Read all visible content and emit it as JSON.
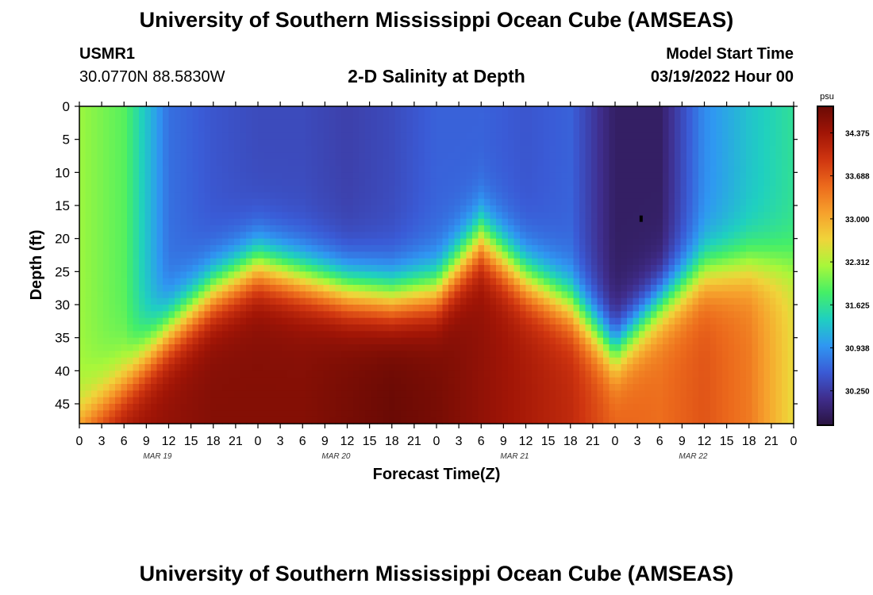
{
  "header": {
    "title": "University of Southern Mississippi Ocean Cube (AMSEAS)",
    "station": "USMR1",
    "coordinates": "30.0770N  88.5830W",
    "subtitle": "2-D Salinity at Depth",
    "model_start_label": "Model Start Time",
    "model_start_value": "03/19/2022 Hour 00"
  },
  "footer": {
    "title": "University of Southern Mississippi Ocean Cube (AMSEAS)"
  },
  "chart_data": {
    "type": "heatmap",
    "title": "2-D Salinity at Depth",
    "xlabel": "Forecast Time(Z)",
    "ylabel": "Depth (ft)",
    "x_range_hours": [
      0,
      96
    ],
    "ylim": [
      0,
      48
    ],
    "x_tick_labels": [
      "0",
      "3",
      "6",
      "9",
      "12",
      "15",
      "18",
      "21",
      "0",
      "3",
      "6",
      "9",
      "12",
      "15",
      "18",
      "21",
      "0",
      "3",
      "6",
      "9",
      "12",
      "15",
      "18",
      "21",
      "0",
      "3",
      "6",
      "9",
      "12",
      "15",
      "18",
      "21",
      "0"
    ],
    "y_ticks": [
      0,
      5,
      10,
      15,
      20,
      25,
      30,
      35,
      40,
      45
    ],
    "date_labels": [
      {
        "label": "MAR 19",
        "hour": 10.5
      },
      {
        "label": "MAR 20",
        "hour": 34.5
      },
      {
        "label": "MAR 21",
        "hour": 58.5
      },
      {
        "label": "MAR 22",
        "hour": 82.5
      }
    ],
    "colorbar": {
      "unit": "psu",
      "min": 29.7,
      "max": 34.8,
      "tick_labels": [
        "34.375",
        "33.688",
        "33.000",
        "32.312",
        "31.625",
        "30.938",
        "30.250"
      ],
      "colors": [
        "#2a1340",
        "#3f2d8c",
        "#3a5bd6",
        "#2f97f2",
        "#1fd0c0",
        "#45ef66",
        "#a8f73a",
        "#f0d43a",
        "#f6a02c",
        "#ec6a1c",
        "#cf3510",
        "#a11506",
        "#6a0a05"
      ]
    },
    "series": [
      {
        "name": "surface_0_25ft_psu",
        "hours": [
          0,
          6,
          12,
          18,
          24,
          30,
          36,
          42,
          48,
          54,
          60,
          66,
          72,
          78,
          84,
          90,
          96
        ],
        "values": [
          32.2,
          31.9,
          30.7,
          30.5,
          30.4,
          30.4,
          30.3,
          30.4,
          30.6,
          30.6,
          30.5,
          30.6,
          29.9,
          29.9,
          30.9,
          31.3,
          31.6
        ]
      },
      {
        "name": "halocline_depth_ft",
        "hours": [
          0,
          6,
          12,
          18,
          24,
          30,
          36,
          42,
          48,
          54,
          60,
          66,
          72,
          78,
          84,
          90,
          96
        ],
        "values": [
          48,
          42,
          34,
          28,
          24,
          26,
          28,
          29,
          28,
          20,
          26,
          30,
          37,
          30,
          25,
          24,
          24
        ]
      },
      {
        "name": "bottom_45ft_psu",
        "hours": [
          0,
          6,
          12,
          18,
          24,
          30,
          36,
          42,
          48,
          54,
          60,
          66,
          72,
          78,
          84,
          90,
          96
        ],
        "values": [
          34.0,
          34.4,
          34.5,
          34.6,
          34.6,
          34.6,
          34.7,
          34.8,
          34.7,
          34.5,
          34.3,
          34.1,
          33.6,
          33.5,
          33.7,
          33.4,
          32.6
        ]
      }
    ]
  }
}
